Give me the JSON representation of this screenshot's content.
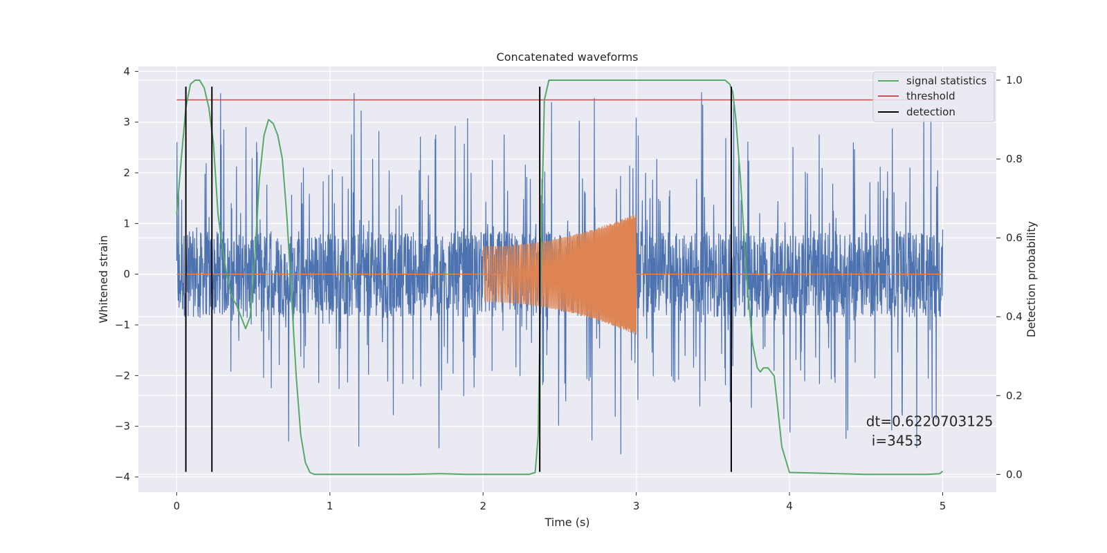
{
  "chart_data": {
    "type": "line",
    "title": "Concatenated waveforms",
    "xlabel": "Time (s)",
    "ylabel": "Whitened strain",
    "y2label": "Detection probability",
    "xlim": [
      -0.25,
      5.35
    ],
    "ylim": [
      -4.3,
      4.1
    ],
    "y2lim": [
      -0.045,
      1.035
    ],
    "xticks": [
      0,
      1,
      2,
      3,
      4,
      5
    ],
    "yticks": [
      -4,
      -3,
      -2,
      -1,
      0,
      1,
      2,
      3,
      4
    ],
    "y2ticks": [
      0.0,
      0.2,
      0.4,
      0.6,
      0.8,
      1.0
    ],
    "grid": true,
    "legend_position": "top-right",
    "colors": {
      "strain": "#4c72b0",
      "template": "#dd8452",
      "statistics": "#55a868",
      "threshold": "#c44e52",
      "detection": "#000000",
      "background": "#eaeaf2",
      "grid": "#ffffff"
    },
    "series": [
      {
        "name": "signal statistics",
        "axis": "right",
        "x": [
          0,
          0.03,
          0.06,
          0.09,
          0.12,
          0.15,
          0.18,
          0.21,
          0.24,
          0.27,
          0.3,
          0.33,
          0.36,
          0.39,
          0.42,
          0.45,
          0.48,
          0.51,
          0.54,
          0.57,
          0.6,
          0.63,
          0.66,
          0.69,
          0.72,
          0.75,
          0.78,
          0.81,
          0.84,
          0.87,
          0.9,
          1.2,
          1.5,
          1.72,
          1.9,
          2.1,
          2.3,
          2.34,
          2.36,
          2.38,
          2.4,
          2.43,
          2.47,
          2.6,
          3.0,
          3.4,
          3.58,
          3.61,
          3.63,
          3.65,
          3.68,
          3.72,
          3.76,
          3.79,
          3.81,
          3.83,
          3.86,
          3.9,
          3.92,
          3.95,
          4.0,
          4.5,
          4.9,
          4.98,
          5.0
        ],
        "values": [
          0.66,
          0.8,
          0.93,
          0.99,
          1.0,
          1.0,
          0.98,
          0.93,
          0.84,
          0.66,
          0.57,
          0.5,
          0.45,
          0.43,
          0.4,
          0.37,
          0.4,
          0.55,
          0.75,
          0.86,
          0.9,
          0.89,
          0.86,
          0.8,
          0.65,
          0.45,
          0.25,
          0.1,
          0.03,
          0.005,
          0.0,
          0.0,
          0.0,
          0.002,
          0.0,
          0.0,
          0.0,
          0.005,
          0.1,
          0.6,
          0.95,
          1.0,
          1.0,
          1.0,
          1.0,
          1.0,
          1.0,
          0.99,
          0.97,
          0.9,
          0.75,
          0.5,
          0.33,
          0.27,
          0.26,
          0.27,
          0.27,
          0.25,
          0.18,
          0.07,
          0.005,
          0.0,
          0.0,
          0.002,
          0.008
        ]
      },
      {
        "name": "threshold",
        "axis": "right",
        "x": [
          0,
          5
        ],
        "values": [
          0.95,
          0.95
        ]
      }
    ],
    "strain": {
      "axis": "left",
      "x_range": [
        0,
        5
      ],
      "samples": 2600,
      "core_amplitude": 0.85,
      "spike_max": 3.7,
      "spike_min": -3.9
    },
    "template": {
      "axis": "left",
      "x_start": 2.0,
      "x_end": 3.0,
      "amplitude_start": 0.55,
      "amplitude_end": 1.2,
      "baseline_value": 0.0
    },
    "detection_times": [
      0.06,
      0.23,
      2.37,
      3.62
    ],
    "legend": [
      "signal statistics",
      "threshold",
      "detection"
    ],
    "annotation": {
      "line1": "dt=0.6220703125",
      "line2": "i=3453",
      "x": 4.5,
      "y": -3.0
    }
  }
}
